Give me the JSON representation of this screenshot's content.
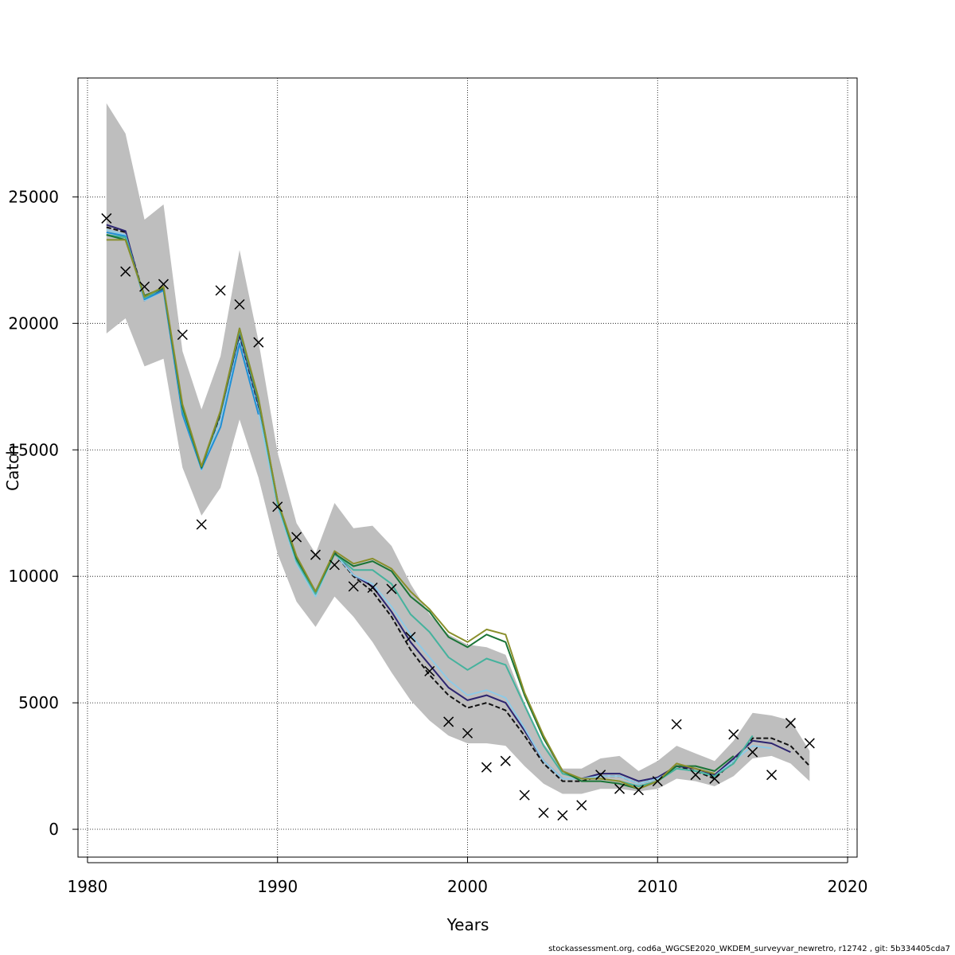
{
  "chart_data": {
    "type": "line",
    "title": "",
    "xlabel": "Years",
    "ylabel": "Catch",
    "xlim": [
      1979.5,
      2020.5
    ],
    "ylim": [
      -1100,
      29700
    ],
    "x_ticks": [
      1980,
      1990,
      2000,
      2010,
      2020
    ],
    "y_ticks": [
      0,
      5000,
      10000,
      15000,
      20000,
      25000
    ],
    "grid": true,
    "legend": "none",
    "confidence_band": {
      "x": [
        1981,
        1982,
        1983,
        1984,
        1985,
        1986,
        1987,
        1988,
        1989,
        1990,
        1991,
        1992,
        1993,
        1994,
        1995,
        1996,
        1997,
        1998,
        1999,
        2000,
        2001,
        2002,
        2003,
        2004,
        2005,
        2006,
        2007,
        2008,
        2009,
        2010,
        2011,
        2012,
        2013,
        2014,
        2015,
        2016,
        2017,
        2018
      ],
      "upper": [
        28700,
        27500,
        24100,
        24700,
        18900,
        16600,
        18700,
        22900,
        19300,
        14900,
        12100,
        10900,
        12900,
        11900,
        12000,
        11200,
        9700,
        8500,
        7700,
        7300,
        7200,
        6900,
        5000,
        3400,
        2400,
        2400,
        2800,
        2900,
        2300,
        2700,
        3300,
        3000,
        2700,
        3500,
        4600,
        4500,
        4300,
        3100
      ],
      "lower": [
        19600,
        20200,
        18300,
        18600,
        14300,
        12400,
        13500,
        16200,
        13900,
        10900,
        9000,
        8000,
        9200,
        8400,
        7400,
        6200,
        5100,
        4300,
        3700,
        3400,
        3400,
        3300,
        2500,
        1800,
        1400,
        1400,
        1600,
        1600,
        1500,
        1600,
        2000,
        1900,
        1700,
        2100,
        2800,
        2900,
        2600,
        1900
      ]
    },
    "series": [
      {
        "color": "#111111",
        "dashed": true,
        "x": [
          1981,
          1982,
          1983,
          1984,
          1985,
          1986,
          1987,
          1988,
          1989,
          1990,
          1991,
          1992,
          1993,
          1994,
          1995,
          1996,
          1997,
          1998,
          1999,
          2000,
          2001,
          2002,
          2003,
          2004,
          2005,
          2006,
          2007,
          2008,
          2009,
          2010,
          2011,
          2012,
          2013,
          2014,
          2015,
          2016,
          2017,
          2018
        ],
        "values": [
          23800,
          23600,
          21000,
          21400,
          16500,
          14300,
          16400,
          19500,
          16700,
          12800,
          10600,
          9300,
          10900,
          10000,
          9400,
          8400,
          7100,
          6100,
          5300,
          4800,
          5000,
          4700,
          3700,
          2600,
          1900,
          1900,
          2100,
          2100,
          1800,
          2000,
          2500,
          2300,
          2000,
          2700,
          3600,
          3600,
          3300,
          2500
        ]
      },
      {
        "color": "#2c2470",
        "dashed": false,
        "x": [
          1981,
          1982,
          1983,
          1984,
          1985,
          1986,
          1987,
          1988,
          1989,
          1990,
          1991,
          1992,
          1993,
          1994,
          1995,
          1996,
          1997,
          1998,
          1999,
          2000,
          2001,
          2002,
          2003,
          2004,
          2005,
          2006,
          2007,
          2008,
          2009,
          2010,
          2011,
          2012,
          2013,
          2014,
          2015,
          2016,
          2017
        ],
        "values": [
          23900,
          23650,
          20900,
          21350,
          16500,
          14300,
          16450,
          19600,
          16800,
          12900,
          10600,
          9300,
          10950,
          10050,
          9600,
          8600,
          7400,
          6500,
          5600,
          5100,
          5300,
          5000,
          3900,
          2700,
          2000,
          2000,
          2200,
          2200,
          1900,
          2050,
          2500,
          2400,
          2150,
          2800,
          3500,
          3400,
          3050
        ]
      },
      {
        "color": "#8ecae6",
        "dashed": false,
        "x": [
          1981,
          1982,
          1983,
          1984,
          1985,
          1986,
          1987,
          1988,
          1989,
          1990,
          1991,
          1992,
          1993,
          1994,
          1995,
          1996,
          1997,
          1998,
          1999,
          2000,
          2001,
          2002,
          2003,
          2004,
          2005,
          2006,
          2007,
          2008,
          2009,
          2010,
          2011,
          2012,
          2013,
          2014,
          2015,
          2016
        ],
        "values": [
          23700,
          23500,
          20900,
          21300,
          16500,
          14200,
          16200,
          19300,
          16500,
          12800,
          10500,
          9200,
          10900,
          10050,
          9700,
          8800,
          7700,
          6800,
          5900,
          5300,
          5500,
          5200,
          4000,
          2700,
          2000,
          2000,
          2100,
          2100,
          1800,
          2000,
          2400,
          2300,
          2100,
          2700,
          3300,
          3200
        ]
      },
      {
        "color": "#1f8fd6",
        "dashed": false,
        "x": [
          1981,
          1982,
          1983,
          1984,
          1985,
          1986,
          1987,
          1988,
          1989
        ],
        "values": [
          23600,
          23450,
          20950,
          21300,
          16400,
          14250,
          15900,
          19200,
          16400
        ]
      },
      {
        "color": "#45b29d",
        "dashed": false,
        "x": [
          1981,
          1982,
          1983,
          1984,
          1985,
          1986,
          1987,
          1988,
          1989,
          1990,
          1991,
          1992,
          1993,
          1994,
          1995,
          1996,
          1997,
          1998,
          1999,
          2000,
          2001,
          2002,
          2003,
          2004,
          2005,
          2006,
          2007,
          2008,
          2009,
          2010,
          2011,
          2012,
          2013,
          2014,
          2015
        ],
        "values": [
          23500,
          23400,
          21000,
          21400,
          16600,
          14300,
          16500,
          19700,
          16900,
          12900,
          10600,
          9300,
          10900,
          10250,
          10250,
          9700,
          8500,
          7800,
          6800,
          6300,
          6750,
          6500,
          4900,
          3300,
          2200,
          2000,
          2000,
          1900,
          1700,
          1900,
          2400,
          2300,
          2100,
          2600,
          3700
        ]
      },
      {
        "color": "#1a7436",
        "dashed": false,
        "x": [
          1981,
          1982,
          1983,
          1984,
          1985,
          1986,
          1987,
          1988,
          1989,
          1990,
          1991,
          1992,
          1993,
          1994,
          1995,
          1996,
          1997,
          1998,
          1999,
          2000,
          2001,
          2002,
          2003,
          2004,
          2005,
          2006,
          2007,
          2008,
          2009,
          2010,
          2011,
          2012,
          2013,
          2014
        ],
        "values": [
          23500,
          23300,
          21100,
          21400,
          16700,
          14300,
          16500,
          19800,
          17000,
          13000,
          10700,
          9400,
          10900,
          10400,
          10600,
          10200,
          9200,
          8600,
          7600,
          7200,
          7700,
          7400,
          5300,
          3600,
          2300,
          1900,
          1900,
          1800,
          1600,
          1900,
          2500,
          2500,
          2300,
          2900
        ]
      },
      {
        "color": "#8a8f2c",
        "dashed": false,
        "x": [
          1981,
          1982,
          1983,
          1984,
          1985,
          1986,
          1987,
          1988,
          1989,
          1990,
          1991,
          1992,
          1993,
          1994,
          1995,
          1996,
          1997,
          1998,
          1999,
          2000,
          2001,
          2002,
          2003,
          2004,
          2005,
          2006,
          2007,
          2008,
          2009,
          2010,
          2011,
          2012,
          2013
        ],
        "values": [
          23300,
          23300,
          21050,
          21450,
          16800,
          14350,
          16550,
          19800,
          17050,
          13000,
          10800,
          9400,
          11000,
          10500,
          10700,
          10300,
          9400,
          8700,
          7800,
          7400,
          7900,
          7700,
          5400,
          3700,
          2300,
          2000,
          2000,
          1900,
          1600,
          1900,
          2600,
          2400,
          2200
        ]
      }
    ],
    "observed": {
      "marker": "x",
      "x": [
        1981,
        1982,
        1983,
        1984,
        1985,
        1986,
        1987,
        1988,
        1989,
        1990,
        1991,
        1992,
        1993,
        1994,
        1995,
        1996,
        1997,
        1998,
        1999,
        2000,
        2001,
        2002,
        2003,
        2004,
        2005,
        2006,
        2007,
        2008,
        2009,
        2010,
        2011,
        2012,
        2013,
        2014,
        2015,
        2016,
        2017,
        2018
      ],
      "values": [
        24150,
        22050,
        21450,
        21550,
        19550,
        12050,
        21300,
        20750,
        19250,
        12750,
        11550,
        10850,
        10450,
        9600,
        9550,
        9500,
        7600,
        6250,
        4250,
        3800,
        2450,
        2700,
        1350,
        650,
        550,
        950,
        2150,
        1600,
        1550,
        1900,
        4150,
        2150,
        2000,
        3750,
        3050,
        2150,
        4200,
        3400
      ]
    },
    "footer": "stockassessment.org, cod6a_WGCSE2020_WKDEM_surveyvar_newretro, r12742 , git: 5b334405cda7"
  }
}
